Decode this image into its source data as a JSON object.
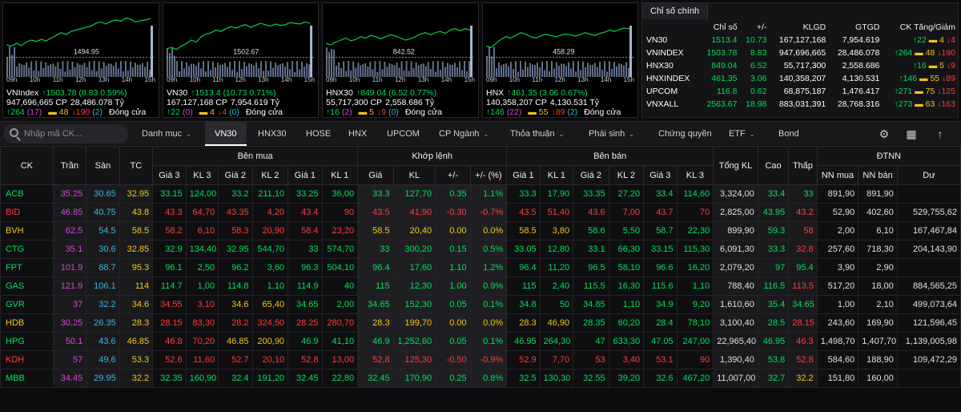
{
  "colors": {
    "up": "#00e05a",
    "down": "#ff3b3b",
    "ref": "#f5c518",
    "ceil": "#d943e0",
    "floor": "#35b8e0"
  },
  "panels": [
    {
      "ref": "1494.95",
      "name": "VNIndex",
      "change": "↑1503.78 (8.83 0.59%)",
      "volume": "947,696,665 CP",
      "value": "28,486.078 Tỷ",
      "up": "↑264",
      "up_ceiling": "(17)",
      "unchanged": "48",
      "down": "↓190",
      "down_floor": "(2)",
      "status": "Đóng cửa",
      "series": [
        0.48,
        0.46,
        0.5,
        0.47,
        0.52,
        0.55,
        0.53,
        0.56,
        0.54,
        0.58,
        0.62,
        0.66,
        0.63,
        0.68,
        0.7,
        0.72,
        0.74,
        0.76,
        0.8,
        0.82,
        0.79,
        0.83,
        0.85,
        0.83,
        0.88,
        0.86,
        0.82,
        0.84,
        0.85,
        0.87
      ]
    },
    {
      "ref": "1502.67",
      "name": "VN30",
      "change": "↑1513.4 (10.73 0.71%)",
      "volume": "167,127,168 CP",
      "value": "7,954.619 Tỷ",
      "up": "↑22",
      "up_ceiling": "(0)",
      "unchanged": "4",
      "down": "↓4",
      "down_floor": "(0)",
      "status": "Đóng cửa",
      "series": [
        0.42,
        0.44,
        0.41,
        0.46,
        0.5,
        0.55,
        0.52,
        0.6,
        0.64,
        0.66,
        0.7,
        0.68,
        0.72,
        0.75,
        0.73,
        0.76,
        0.78,
        0.74,
        0.77,
        0.8,
        0.78,
        0.76,
        0.79,
        0.77,
        0.78,
        0.81,
        0.8,
        0.79,
        0.82,
        0.8
      ]
    },
    {
      "ref": "842.52",
      "name": "HNX30",
      "change": "↑849.04 (6.52 0.77%)",
      "volume": "55,717,300 CP",
      "value": "2,558.686 Tỷ",
      "up": "↑16",
      "up_ceiling": "(2)",
      "unchanged": "5",
      "down": "↓9",
      "down_floor": "(0)",
      "status": "Đóng cửa",
      "series": [
        0.5,
        0.48,
        0.52,
        0.55,
        0.58,
        0.54,
        0.56,
        0.6,
        0.58,
        0.62,
        0.6,
        0.57,
        0.6,
        0.63,
        0.61,
        0.58,
        0.55,
        0.57,
        0.6,
        0.64,
        0.66,
        0.63,
        0.66,
        0.68,
        0.65,
        0.7,
        0.72,
        0.69,
        0.72,
        0.7
      ]
    },
    {
      "ref": "458.29",
      "name": "HNX",
      "change": "↑461.35 (3.06 0.67%)",
      "volume": "140,358,207 CP",
      "value": "4,130.531 Tỷ",
      "up": "↑146",
      "up_ceiling": "(22)",
      "unchanged": "55",
      "down": "↓89",
      "down_floor": "(2)",
      "status": "Đóng cửa",
      "series": [
        0.46,
        0.44,
        0.5,
        0.56,
        0.6,
        0.58,
        0.62,
        0.66,
        0.64,
        0.6,
        0.58,
        0.61,
        0.64,
        0.62,
        0.6,
        0.62,
        0.64,
        0.63,
        0.61,
        0.63,
        0.66,
        0.64,
        0.62,
        0.65,
        0.67,
        0.7,
        0.68,
        0.71,
        0.73,
        0.72
      ]
    }
  ],
  "times": [
    "09h",
    "10h",
    "11h",
    "12h",
    "13h",
    "14h",
    "15h"
  ],
  "summary": {
    "tab": "Chỉ số chính",
    "headers": [
      "",
      "Chỉ số",
      "+/-",
      "KLGD",
      "GTGD",
      "CK Tăng/Giảm"
    ],
    "rows": [
      {
        "name": "VN30",
        "index": "1513.4",
        "chg": "10.73",
        "klgd": "167,127,168",
        "gtgd": "7,954.619",
        "up": "↑22",
        "ref": "4",
        "down": "↓4"
      },
      {
        "name": "VNINDEX",
        "index": "1503.78",
        "chg": "8.83",
        "klgd": "947,696,665",
        "gtgd": "28,486.078",
        "up": "↑264",
        "ref": "48",
        "down": "↓190"
      },
      {
        "name": "HNX30",
        "index": "849.04",
        "chg": "6.52",
        "klgd": "55,717,300",
        "gtgd": "2,558.686",
        "up": "↑16",
        "ref": "5",
        "down": "↓9"
      },
      {
        "name": "HNXINDEX",
        "index": "461.35",
        "chg": "3.06",
        "klgd": "140,358,207",
        "gtgd": "4,130.531",
        "up": "↑146",
        "ref": "55",
        "down": "↓89"
      },
      {
        "name": "UPCOM",
        "index": "116.8",
        "chg": "0.62",
        "klgd": "68,875,187",
        "gtgd": "1,476.417",
        "up": "↑271",
        "ref": "75",
        "down": "↓125"
      },
      {
        "name": "VNXALL",
        "index": "2563.67",
        "chg": "18.98",
        "klgd": "883,031,391",
        "gtgd": "28,768.316",
        "up": "↑273",
        "ref": "63",
        "down": "↓163"
      }
    ]
  },
  "toolbar": {
    "search_placeholder": "Nhập mã CK...",
    "items": [
      "Danh mục",
      "VN30",
      "HNX30",
      "HOSE",
      "HNX",
      "UPCOM",
      "CP Ngành",
      "Thỏa thuận",
      "Phái sinh",
      "Chứng quyền",
      "ETF",
      "Bond"
    ]
  },
  "table": {
    "group_headers": {
      "ck": "CK",
      "tran": "Trần",
      "san": "Sàn",
      "tc": "TC",
      "buy": "Bên mua",
      "match": "Khớp lệnh",
      "sell": "Bên bán",
      "total": "Tổng KL",
      "high": "Cao",
      "low": "Thấp",
      "foreign": "ĐTNN"
    },
    "sub_headers": [
      "Giá 3",
      "KL 3",
      "Giá 2",
      "KL 2",
      "Giá 1",
      "KL 1",
      "Giá",
      "KL",
      "+/-",
      "+/- (%)",
      "Giá 1",
      "KL 1",
      "Giá 2",
      "KL 2",
      "Giá 3",
      "KL 3",
      "NN mua",
      "NN bán",
      "Dư"
    ],
    "rows": [
      [
        "ACB",
        "35.25",
        "30.65",
        "32.95",
        "33.15",
        "124,00",
        "33.2",
        "211,10",
        "33.25",
        "36,00",
        "33.3",
        "127,70",
        "0.35",
        "1.1%",
        "33.3",
        "17,90",
        "33.35",
        "27,20",
        "33.4",
        "114,60",
        "3,324,00",
        "33.4",
        "33",
        "891,90",
        "891,90",
        ""
      ],
      [
        "BID",
        "46.85",
        "40.75",
        "43.8",
        "43.3",
        "64,70",
        "43.35",
        "4,20",
        "43.4",
        "90",
        "43.5",
        "41,90",
        "-0.30",
        "-0.7%",
        "43.5",
        "51,40",
        "43.6",
        "7,00",
        "43.7",
        "70",
        "2,825,00",
        "43.95",
        "43.2",
        "52,90",
        "402,60",
        "529,755,62"
      ],
      [
        "BVH",
        "62.5",
        "54.5",
        "58.5",
        "58.2",
        "6,10",
        "58.3",
        "20,90",
        "58.4",
        "23,20",
        "58.5",
        "20,40",
        "0.00",
        "0.0%",
        "58.5",
        "3,80",
        "58.6",
        "5,50",
        "58.7",
        "22,30",
        "899,90",
        "59.3",
        "58",
        "2,00",
        "6,10",
        "167,467,84"
      ],
      [
        "CTG",
        "35.1",
        "30.6",
        "32.85",
        "32.9",
        "134,40",
        "32.95",
        "544,70",
        "33",
        "574,70",
        "33",
        "300,20",
        "0.15",
        "0.5%",
        "33.05",
        "12,80",
        "33.1",
        "66,30",
        "33.15",
        "115,30",
        "6,091,30",
        "33.3",
        "32.8",
        "257,60",
        "718,30",
        "204,143,90"
      ],
      [
        "FPT",
        "101.9",
        "88.7",
        "95.3",
        "96.1",
        "2,50",
        "96.2",
        "3,60",
        "96.3",
        "504,10",
        "96.4",
        "17,60",
        "1.10",
        "1.2%",
        "96.4",
        "11,20",
        "96.5",
        "58,10",
        "96.6",
        "16,20",
        "2,079,20",
        "97",
        "95.4",
        "3,90",
        "2,90",
        ""
      ],
      [
        "GAS",
        "121.9",
        "106.1",
        "114",
        "114.7",
        "1,00",
        "114.8",
        "1,10",
        "114.9",
        "40",
        "115",
        "12,30",
        "1.00",
        "0.9%",
        "115",
        "2,40",
        "115.5",
        "16,30",
        "115.6",
        "1,10",
        "788,40",
        "116.5",
        "113.5",
        "517,20",
        "18,00",
        "884,565,25"
      ],
      [
        "GVR",
        "37",
        "32.2",
        "34.6",
        "34.55",
        "3,10",
        "34.6",
        "65,40",
        "34.65",
        "2,00",
        "34.65",
        "152,30",
        "0.05",
        "0.1%",
        "34.8",
        "50",
        "34.85",
        "1,10",
        "34.9",
        "9,20",
        "1,610,60",
        "35.4",
        "34.65",
        "1,00",
        "2,10",
        "499,073,64"
      ],
      [
        "HDB",
        "30.25",
        "26.35",
        "28.3",
        "28.15",
        "83,30",
        "28.2",
        "324,50",
        "28.25",
        "280,70",
        "28.3",
        "199,70",
        "0.00",
        "0.0%",
        "28.3",
        "46,90",
        "28.35",
        "60,20",
        "28.4",
        "78,10",
        "3,100,40",
        "28.5",
        "28.15",
        "243,60",
        "169,90",
        "121,596,45"
      ],
      [
        "HPG",
        "50.1",
        "43.6",
        "46.85",
        "46.8",
        "70,20",
        "46.85",
        "200,90",
        "46.9",
        "41,10",
        "46.9",
        "1,252,60",
        "0.05",
        "0.1%",
        "46.95",
        "264,30",
        "47",
        "633,30",
        "47.05",
        "247,00",
        "22,965,40",
        "46.95",
        "46.3",
        "1,498,70",
        "1,407,70",
        "1,139,005,98"
      ],
      [
        "KDH",
        "57",
        "49.6",
        "53.3",
        "52.6",
        "11,60",
        "52.7",
        "20,10",
        "52.8",
        "13,00",
        "52.8",
        "125,30",
        "-0.50",
        "-0.9%",
        "52.9",
        "7,70",
        "53",
        "3,40",
        "53.1",
        "90",
        "1,390,40",
        "53.8",
        "52.8",
        "584,60",
        "188,90",
        "109,472,29"
      ],
      [
        "MBB",
        "34.45",
        "29.95",
        "32.2",
        "32.35",
        "160,90",
        "32.4",
        "191,20",
        "32.45",
        "22,80",
        "32.45",
        "170,90",
        "0.25",
        "0.8%",
        "32.5",
        "130,30",
        "32.55",
        "39,20",
        "32.6",
        "467,20",
        "11,007,00",
        "32.7",
        "32.2",
        "151,80",
        "160,00",
        ""
      ]
    ]
  }
}
